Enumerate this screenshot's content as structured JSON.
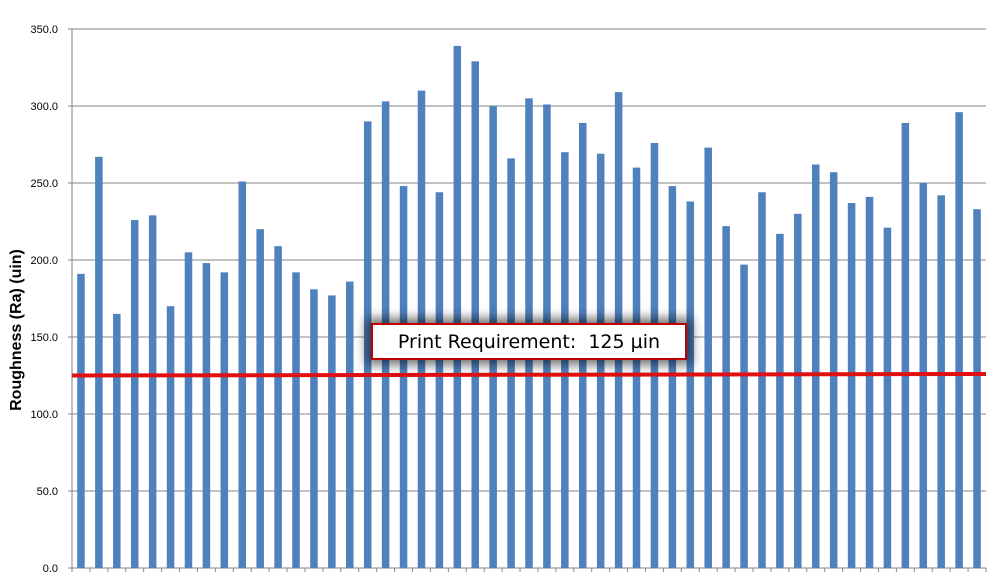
{
  "chart_data": {
    "type": "bar",
    "title": "",
    "xlabel": "",
    "ylabel": "Roughness (Ra) (uin)",
    "ylim": [
      0,
      350
    ],
    "y_ticks": [
      "0.0",
      "50.0",
      "100.0",
      "150.0",
      "200.0",
      "250.0",
      "300.0",
      "350.0"
    ],
    "grid": true,
    "legend": "none",
    "bar_color": "#4f81bd",
    "series": [
      {
        "values": [
          191,
          267,
          165,
          226,
          229,
          170,
          205,
          198,
          192,
          251,
          220,
          209,
          192,
          181,
          177,
          186,
          290,
          303,
          248,
          310,
          244,
          339,
          329,
          300,
          266,
          305,
          301,
          270,
          289,
          269,
          309,
          260,
          276,
          248,
          238,
          273,
          222,
          197,
          244,
          217,
          230,
          262,
          257,
          237,
          241,
          221,
          289,
          250,
          242,
          296,
          233
        ]
      }
    ],
    "reference_line": {
      "value": 125,
      "color": "#e01010",
      "label": "Print Requirement:  125 µin"
    }
  }
}
